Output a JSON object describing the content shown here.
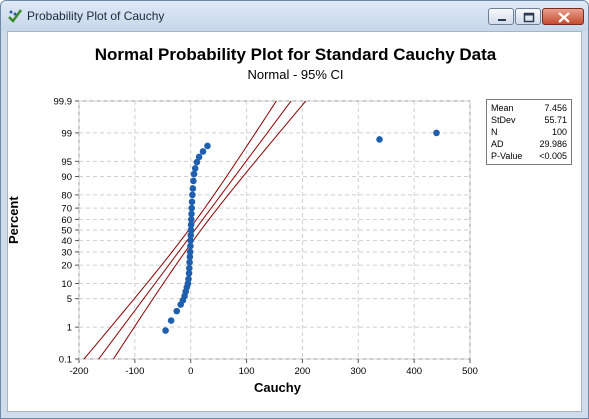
{
  "window": {
    "title": "Probability Plot of Cauchy",
    "icons": [
      "probability-plot-app-icon",
      "minimize-icon",
      "maximize-icon",
      "close-icon"
    ]
  },
  "chart_data": {
    "type": "scatter",
    "title": "Normal Probability Plot for Standard Cauchy Data",
    "subtitle": "Normal - 95% CI",
    "xlabel": "Cauchy",
    "ylabel": "Percent",
    "xlim": [
      -200,
      500
    ],
    "ylim": [
      0.1,
      99.9
    ],
    "y_scale": "normal-probability",
    "x_ticks": [
      -200,
      -100,
      0,
      100,
      200,
      300,
      400,
      500
    ],
    "y_ticks": [
      0.1,
      1,
      5,
      10,
      20,
      30,
      40,
      50,
      60,
      70,
      80,
      90,
      95,
      99,
      99.9
    ],
    "grid": true,
    "colors": {
      "points": "#1f5fae",
      "fit_line": "#8b0000",
      "ci_band": "#8b0000"
    },
    "fit_line": {
      "mean": 7.456,
      "stdev": 55.71
    },
    "ci_level": 0.95,
    "points": [
      {
        "x": -45,
        "y": 0.8
      },
      {
        "x": -35,
        "y": 1.5
      },
      {
        "x": -25,
        "y": 2.6
      },
      {
        "x": -18,
        "y": 3.7
      },
      {
        "x": -14,
        "y": 4.6
      },
      {
        "x": -11,
        "y": 5.7
      },
      {
        "x": -9,
        "y": 7
      },
      {
        "x": -7,
        "y": 8.5
      },
      {
        "x": -5,
        "y": 10
      },
      {
        "x": -4,
        "y": 12
      },
      {
        "x": -3,
        "y": 15
      },
      {
        "x": -2.5,
        "y": 18
      },
      {
        "x": -2,
        "y": 22
      },
      {
        "x": -1.5,
        "y": 26
      },
      {
        "x": -1,
        "y": 30
      },
      {
        "x": -0.6,
        "y": 35
      },
      {
        "x": -0.2,
        "y": 40
      },
      {
        "x": 0.1,
        "y": 45
      },
      {
        "x": 0.4,
        "y": 50
      },
      {
        "x": 0.7,
        "y": 55
      },
      {
        "x": 1,
        "y": 60
      },
      {
        "x": 1.4,
        "y": 65
      },
      {
        "x": 1.8,
        "y": 70
      },
      {
        "x": 2.3,
        "y": 75
      },
      {
        "x": 3,
        "y": 80
      },
      {
        "x": 3.8,
        "y": 84
      },
      {
        "x": 4.8,
        "y": 88
      },
      {
        "x": 6,
        "y": 91
      },
      {
        "x": 8,
        "y": 93
      },
      {
        "x": 11,
        "y": 94.8
      },
      {
        "x": 15,
        "y": 96
      },
      {
        "x": 22,
        "y": 97
      },
      {
        "x": 30,
        "y": 97.8
      },
      {
        "x": 338,
        "y": 98.5
      },
      {
        "x": 440,
        "y": 99
      }
    ],
    "stats": [
      {
        "label": "Mean",
        "value": "7.456"
      },
      {
        "label": "StDev",
        "value": "55.71"
      },
      {
        "label": "N",
        "value": "100"
      },
      {
        "label": "AD",
        "value": "29.986"
      },
      {
        "label": "P-Value",
        "value": "<0.005"
      }
    ]
  }
}
